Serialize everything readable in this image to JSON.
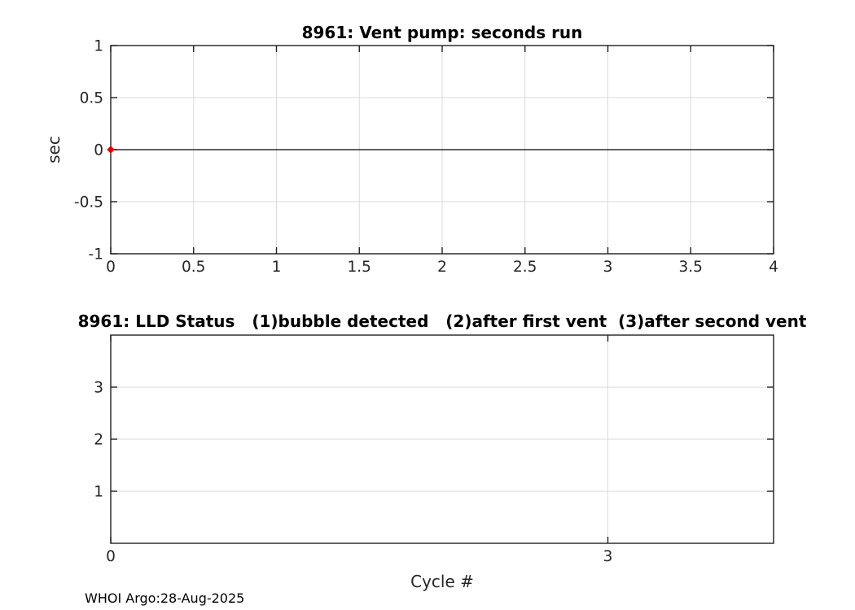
{
  "figure": {
    "background_color": "#ffffff",
    "axis_color": "#1f1f1f",
    "grid_color": "#dbdbdb",
    "tick_label_color": "#262626",
    "footer_text": "WHOI Argo:28-Aug-2025"
  },
  "chart_data": [
    {
      "type": "line",
      "title": "8961: Vent pump: seconds run",
      "xlabel": "",
      "ylabel": "sec",
      "xlim": [
        0,
        4
      ],
      "ylim": [
        -1,
        1
      ],
      "xtick_values": [
        0,
        0.5,
        1,
        1.5,
        2,
        2.5,
        3,
        3.5,
        4
      ],
      "xtick_labels": [
        "0",
        "0.5",
        "1",
        "1.5",
        "2",
        "2.5",
        "3",
        "3.5",
        "4"
      ],
      "ytick_values": [
        -1,
        -0.5,
        0,
        0.5,
        1
      ],
      "ytick_labels": [
        "-1",
        "-0.5",
        "0",
        "0.5",
        "1"
      ],
      "grid": true,
      "legend": null,
      "series": [
        {
          "name": "vent-pump-seconds-line",
          "type": "line",
          "color": "#000000",
          "x": [
            0,
            4
          ],
          "y": [
            0,
            0
          ]
        },
        {
          "name": "vent-pump-seconds-marker",
          "type": "scatter",
          "marker": "diamond",
          "color": "#e60000",
          "x": [
            0
          ],
          "y": [
            0
          ]
        }
      ]
    },
    {
      "type": "line",
      "title": "8961: LLD Status   (1)bubble detected   (2)after first vent  (3)after second vent",
      "xlabel": "Cycle #",
      "ylabel": "",
      "xlim": [
        0,
        4
      ],
      "ylim": [
        0,
        4
      ],
      "xtick_values": [
        0,
        3
      ],
      "xtick_labels": [
        "0",
        "3"
      ],
      "ytick_values": [
        1,
        2,
        3
      ],
      "ytick_labels": [
        "1",
        "2",
        "3"
      ],
      "grid": true,
      "legend": null,
      "series": []
    }
  ]
}
